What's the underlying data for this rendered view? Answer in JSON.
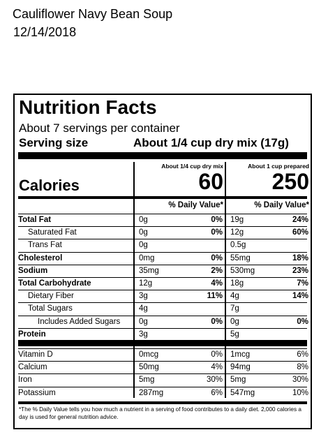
{
  "header": {
    "title": "Cauliflower Navy Bean Soup",
    "date": "12/14/2018"
  },
  "label": {
    "heading": "Nutrition Facts",
    "servings": "About 7 servings per container",
    "serving_size_label": "Serving size",
    "serving_size_value": "About 1/4 cup dry mix (17g)",
    "col1_header": "About 1/4 cup dry mix",
    "col2_header": "About 1 cup prepared",
    "calories_label": "Calories",
    "calories_1": "60",
    "calories_2": "250",
    "dv_header_1": "% Daily Value*",
    "dv_header_2": "% Daily Value*",
    "nutrients": [
      {
        "name": "Total Fat",
        "a1": "0g",
        "p1": "0%",
        "a2": "19g",
        "p2": "24%"
      },
      {
        "name": "Saturated Fat",
        "a1": "0g",
        "p1": "0%",
        "a2": "12g",
        "p2": "60%"
      },
      {
        "name": "Trans Fat",
        "a1": "0g",
        "p1": "",
        "a2": "0.5g",
        "p2": ""
      },
      {
        "name": "Cholesterol",
        "a1": "0mg",
        "p1": "0%",
        "a2": "55mg",
        "p2": "18%"
      },
      {
        "name": "Sodium",
        "a1": "35mg",
        "p1": "2%",
        "a2": "530mg",
        "p2": "23%"
      },
      {
        "name": "Total Carbohydrate",
        "a1": "12g",
        "p1": "4%",
        "a2": "18g",
        "p2": "7%"
      },
      {
        "name": "Dietary Fiber",
        "a1": "3g",
        "p1": "11%",
        "a2": "4g",
        "p2": "14%"
      },
      {
        "name": "Total Sugars",
        "a1": "4g",
        "p1": "",
        "a2": "7g",
        "p2": ""
      },
      {
        "name": "Includes Added Sugars",
        "a1": "0g",
        "p1": "0%",
        "a2": "0g",
        "p2": "0%"
      },
      {
        "name": "Protein",
        "a1": "3g",
        "p1": "",
        "a2": "5g",
        "p2": ""
      }
    ],
    "vitamins": [
      {
        "name": "Vitamin D",
        "a1": "0mcg",
        "p1": "0%",
        "a2": "1mcg",
        "p2": "6%"
      },
      {
        "name": "Calcium",
        "a1": "50mg",
        "p1": "4%",
        "a2": "94mg",
        "p2": "8%"
      },
      {
        "name": "Iron",
        "a1": "5mg",
        "p1": "30%",
        "a2": "5mg",
        "p2": "30%"
      },
      {
        "name": "Potassium",
        "a1": "287mg",
        "p1": "6%",
        "a2": "547mg",
        "p2": "10%"
      }
    ],
    "footnote": "*The % Daily Value tells you how much a nutrient in a serving of food contributes to a daily diet. 2,000 calories a day is used for general nutrition advice."
  }
}
